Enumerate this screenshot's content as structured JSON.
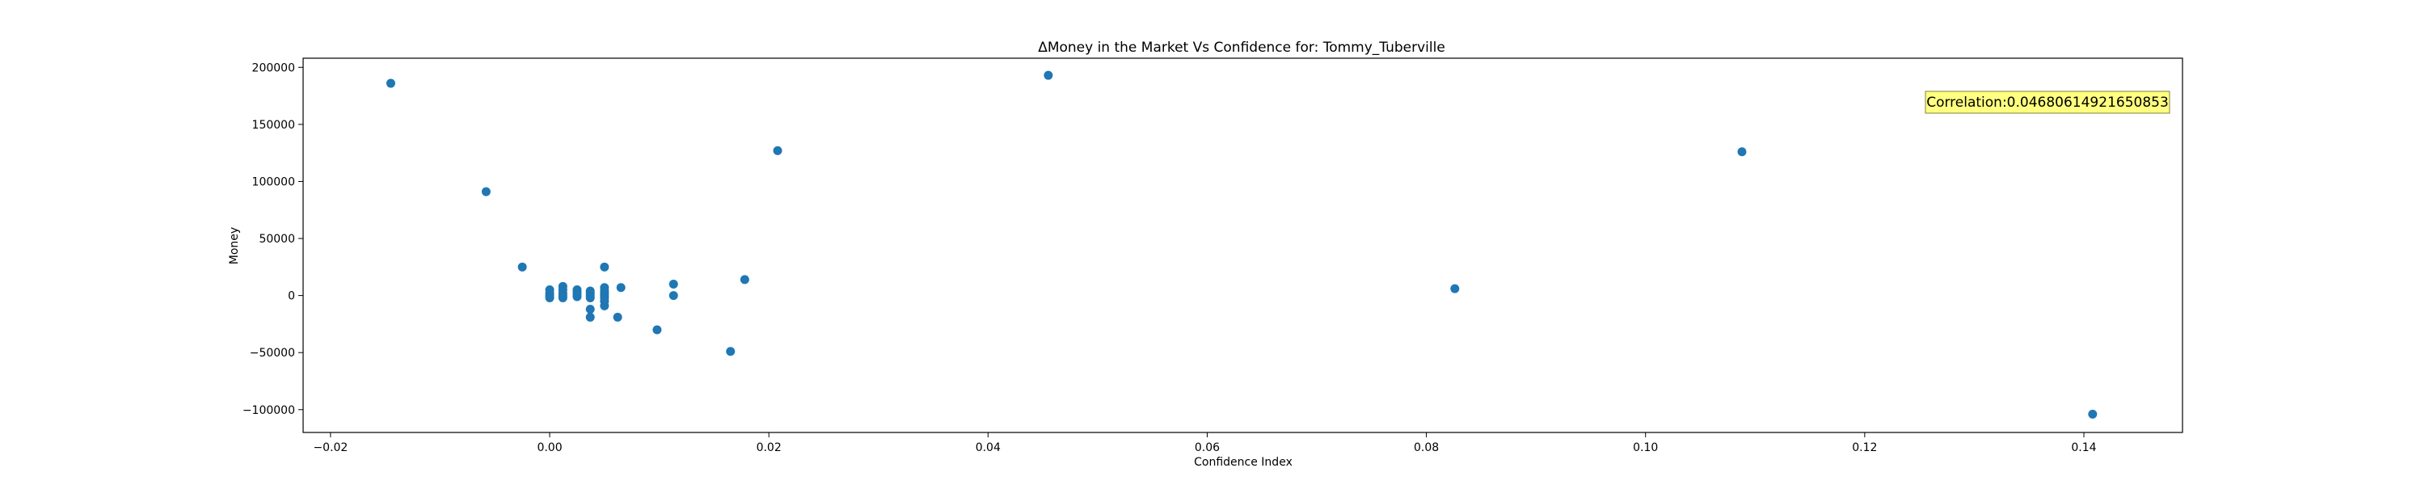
{
  "chart_data": {
    "type": "scatter",
    "title": "ΔMoney in the Market Vs Confidence for: Tommy_Tuberville",
    "xlabel": "Confidence Index",
    "ylabel": "Money",
    "xlim": [
      -0.0225,
      0.149
    ],
    "ylim": [
      -120000,
      208000
    ],
    "xticks": [
      -0.02,
      0.0,
      0.02,
      0.04,
      0.06,
      0.08,
      0.1,
      0.12,
      0.14
    ],
    "xtick_labels": [
      "−0.02",
      "0.00",
      "0.02",
      "0.04",
      "0.06",
      "0.08",
      "0.10",
      "0.12",
      "0.14"
    ],
    "yticks": [
      -100000,
      -50000,
      0,
      50000,
      100000,
      150000,
      200000
    ],
    "ytick_labels": [
      "−100000",
      "−50000",
      "0",
      "50000",
      "100000",
      "150000",
      "200000"
    ],
    "grid": false,
    "annotation": "Correlation:0.04680614921650853",
    "annotation_color": "#ffff80",
    "marker_color": "#1f77b4",
    "points": [
      {
        "x": -0.0145,
        "y": 186000
      },
      {
        "x": -0.0058,
        "y": 91000
      },
      {
        "x": -0.0025,
        "y": 25000
      },
      {
        "x": 0.0,
        "y": 5000
      },
      {
        "x": 0.0,
        "y": 2000
      },
      {
        "x": 0.0,
        "y": 0
      },
      {
        "x": 0.0,
        "y": -2000
      },
      {
        "x": 0.0012,
        "y": 8000
      },
      {
        "x": 0.0012,
        "y": 5000
      },
      {
        "x": 0.0012,
        "y": 2000
      },
      {
        "x": 0.0012,
        "y": 0
      },
      {
        "x": 0.0012,
        "y": -2000
      },
      {
        "x": 0.0025,
        "y": 5000
      },
      {
        "x": 0.0025,
        "y": 3000
      },
      {
        "x": 0.0025,
        "y": 1000
      },
      {
        "x": 0.0025,
        "y": -1000
      },
      {
        "x": 0.0037,
        "y": 4000
      },
      {
        "x": 0.0037,
        "y": 2000
      },
      {
        "x": 0.0037,
        "y": 0
      },
      {
        "x": 0.0037,
        "y": -2000
      },
      {
        "x": 0.0037,
        "y": -12000
      },
      {
        "x": 0.0037,
        "y": -19000
      },
      {
        "x": 0.005,
        "y": 25000
      },
      {
        "x": 0.005,
        "y": 7000
      },
      {
        "x": 0.005,
        "y": 4000
      },
      {
        "x": 0.005,
        "y": 2000
      },
      {
        "x": 0.005,
        "y": 0
      },
      {
        "x": 0.005,
        "y": -2000
      },
      {
        "x": 0.005,
        "y": -5000
      },
      {
        "x": 0.005,
        "y": -9000
      },
      {
        "x": 0.0062,
        "y": -19000
      },
      {
        "x": 0.0065,
        "y": 7000
      },
      {
        "x": 0.0098,
        "y": -30000
      },
      {
        "x": 0.0113,
        "y": 10000
      },
      {
        "x": 0.0113,
        "y": 0
      },
      {
        "x": 0.0165,
        "y": -49000
      },
      {
        "x": 0.0178,
        "y": 14000
      },
      {
        "x": 0.0208,
        "y": 127000
      },
      {
        "x": 0.0455,
        "y": 193000
      },
      {
        "x": 0.0826,
        "y": 6000
      },
      {
        "x": 0.1088,
        "y": 126000
      },
      {
        "x": 0.1408,
        "y": -104000
      }
    ]
  }
}
